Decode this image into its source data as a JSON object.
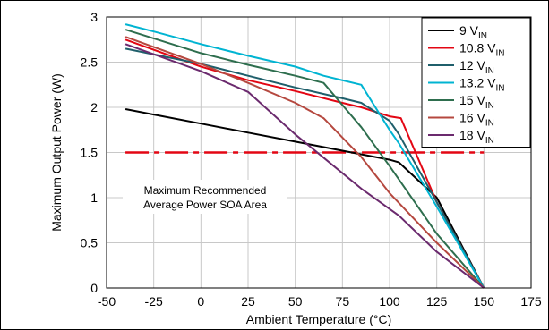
{
  "chart_data": {
    "type": "line",
    "xlabel": "Ambient Temperature (°C)",
    "ylabel": "Maximum Output Power (W)",
    "xlim": [
      -50,
      175
    ],
    "ylim": [
      0,
      3
    ],
    "xticks": [
      -50,
      -25,
      0,
      25,
      50,
      75,
      100,
      125,
      150,
      175
    ],
    "yticks": [
      0,
      0.5,
      1,
      1.5,
      2,
      2.5,
      3
    ],
    "grid": true,
    "legend_position": "top-right",
    "series": [
      {
        "name": "9 V",
        "name_subscript": "IN",
        "color": "#000000",
        "x": [
          -40,
          -25,
          0,
          25,
          50,
          75,
          100,
          105,
          125,
          150
        ],
        "y": [
          1.98,
          1.92,
          1.82,
          1.72,
          1.62,
          1.52,
          1.42,
          1.39,
          1.0,
          0.0
        ]
      },
      {
        "name": "10.8 V",
        "name_subscript": "IN",
        "color": "#e30613",
        "x": [
          -40,
          0,
          25,
          50,
          75,
          85,
          100,
          106,
          125,
          150
        ],
        "y": [
          2.75,
          2.45,
          2.3,
          2.18,
          2.05,
          2.0,
          1.9,
          1.88,
          0.95,
          0.0
        ]
      },
      {
        "name": "12 V",
        "name_subscript": "IN",
        "color": "#1f5f6b",
        "x": [
          -40,
          0,
          25,
          50,
          75,
          85,
          100,
          105,
          125,
          150
        ],
        "y": [
          2.65,
          2.48,
          2.35,
          2.22,
          2.1,
          2.05,
          1.85,
          1.7,
          0.95,
          0.0
        ]
      },
      {
        "name": "13.2 V",
        "name_subscript": "IN",
        "color": "#00b4d2",
        "x": [
          -40,
          -25,
          0,
          25,
          50,
          65,
          85,
          100,
          105,
          125,
          150
        ],
        "y": [
          2.92,
          2.84,
          2.7,
          2.57,
          2.45,
          2.35,
          2.25,
          1.75,
          1.6,
          0.9,
          0.0
        ]
      },
      {
        "name": "15 V",
        "name_subscript": "IN",
        "color": "#2e6e4e",
        "x": [
          -40,
          0,
          25,
          50,
          65,
          85,
          100,
          125,
          150
        ],
        "y": [
          2.86,
          2.6,
          2.47,
          2.35,
          2.27,
          1.78,
          1.35,
          0.6,
          0.0
        ]
      },
      {
        "name": "16 V",
        "name_subscript": "IN",
        "color": "#b5483f",
        "x": [
          -40,
          0,
          25,
          50,
          65,
          85,
          100,
          125,
          150
        ],
        "y": [
          2.78,
          2.48,
          2.27,
          2.05,
          1.88,
          1.45,
          1.05,
          0.5,
          0.0
        ]
      },
      {
        "name": "18 V",
        "name_subscript": "IN",
        "color": "#6b2a6e",
        "x": [
          -40,
          0,
          25,
          50,
          85,
          105,
          125,
          150
        ],
        "y": [
          2.7,
          2.4,
          2.17,
          1.7,
          1.1,
          0.8,
          0.4,
          0.0
        ]
      }
    ],
    "reference_line": {
      "y": 1.5,
      "x": [
        -40,
        150
      ],
      "color": "#e30613",
      "style": "dashed"
    },
    "annotation": {
      "lines": [
        "Maximum Recommended",
        "Average Power SOA Area"
      ]
    }
  }
}
